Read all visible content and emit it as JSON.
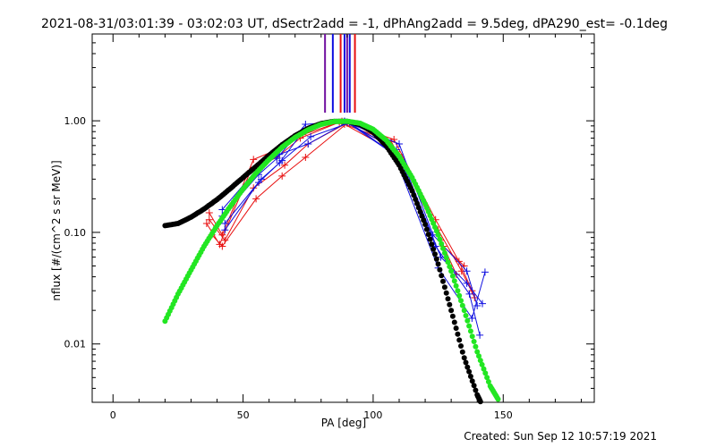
{
  "chart_data": {
    "type": "scatter",
    "title": "2021-08-31/03:01:39 - 03:02:03 UT, dSectr2add = -1, dPhAng2add = 9.5deg, dPA290_est= -0.1deg",
    "xlabel": "PA [deg]",
    "ylabel": "nflux [#/(cm^2 s sr MeV)]",
    "footer": "Created: Sun Sep 12 10:57:19 2021",
    "xlim": [
      -8,
      185
    ],
    "ylim": [
      0.003,
      6.0
    ],
    "yscale": "log",
    "xticks": [
      0,
      50,
      100,
      150
    ],
    "xtick_labels": [
      "0",
      "50",
      "100",
      "150"
    ],
    "yticks": [
      0.01,
      0.1,
      1.0
    ],
    "ytick_labels": [
      "0.01",
      "0.10",
      "1.00"
    ],
    "grid": false,
    "colors": {
      "red": "#e81010",
      "blue": "#1010e0",
      "purple": "#7010a0",
      "green": "#22e622",
      "black": "#000000"
    },
    "vertical_markers": [
      {
        "x": 81.5,
        "color": "#7010a0"
      },
      {
        "x": 84.5,
        "color": "#1010e0"
      },
      {
        "x": 87.5,
        "color": "#e81010"
      },
      {
        "x": 89.0,
        "color": "#1010e0"
      },
      {
        "x": 90.0,
        "color": "#7010a0"
      },
      {
        "x": 91.0,
        "color": "#1010e0"
      },
      {
        "x": 93.0,
        "color": "#e81010"
      }
    ],
    "series": [
      {
        "color": "#000000",
        "style": "dots",
        "x": [
          20,
          25,
          30,
          35,
          40,
          45,
          50,
          55,
          60,
          65,
          70,
          75,
          80,
          85,
          90,
          95,
          100,
          105,
          110,
          115,
          120,
          125,
          130,
          135,
          140,
          142
        ],
        "y": [
          0.115,
          0.12,
          0.137,
          0.162,
          0.197,
          0.246,
          0.31,
          0.39,
          0.49,
          0.61,
          0.735,
          0.855,
          0.945,
          0.99,
          0.99,
          0.925,
          0.79,
          0.6,
          0.4,
          0.235,
          0.118,
          0.052,
          0.02,
          0.0075,
          0.0035,
          0.0028
        ]
      },
      {
        "color": "#22e622",
        "style": "dots",
        "x": [
          20,
          25,
          30,
          35,
          40,
          45,
          50,
          55,
          60,
          65,
          70,
          75,
          80,
          85,
          90,
          95,
          100,
          105,
          110,
          115,
          120,
          125,
          130,
          135,
          140,
          145,
          148
        ],
        "y": [
          0.016,
          0.028,
          0.046,
          0.075,
          0.115,
          0.17,
          0.245,
          0.34,
          0.45,
          0.58,
          0.71,
          0.83,
          0.93,
          0.985,
          0.99,
          0.95,
          0.84,
          0.67,
          0.48,
          0.31,
          0.18,
          0.095,
          0.045,
          0.02,
          0.0085,
          0.0042,
          0.0032
        ]
      },
      {
        "color": "#e81010",
        "style": "lines",
        "x": [
          37,
          42,
          54,
          63,
          73,
          88,
          108,
          124,
          133,
          138
        ],
        "y": [
          0.15,
          0.095,
          0.45,
          0.55,
          0.75,
          0.99,
          0.68,
          0.13,
          0.055,
          0.03
        ]
      },
      {
        "color": "#e81010",
        "style": "lines",
        "x": [
          36,
          41,
          53,
          63,
          72,
          87,
          107,
          125,
          134,
          139
        ],
        "y": [
          0.12,
          0.078,
          0.36,
          0.47,
          0.7,
          0.97,
          0.65,
          0.105,
          0.045,
          0.026
        ]
      },
      {
        "color": "#e81010",
        "style": "lines",
        "x": [
          38,
          42,
          55,
          65,
          74,
          90,
          109,
          126,
          132
        ],
        "y": [
          0.095,
          0.075,
          0.2,
          0.32,
          0.47,
          0.95,
          0.55,
          0.085,
          0.042
        ]
      },
      {
        "color": "#e81010",
        "style": "lines",
        "x": [
          37,
          43,
          54,
          66,
          75,
          89,
          110,
          127,
          135
        ],
        "y": [
          0.13,
          0.085,
          0.25,
          0.4,
          0.62,
          0.93,
          0.5,
          0.075,
          0.05
        ]
      },
      {
        "color": "#1010e0",
        "style": "lines",
        "x": [
          42,
          56,
          63,
          74,
          89,
          110,
          123,
          136,
          140
        ],
        "y": [
          0.14,
          0.33,
          0.46,
          0.93,
          0.99,
          0.62,
          0.095,
          0.045,
          0.022
        ]
      },
      {
        "color": "#1010e0",
        "style": "lines",
        "x": [
          43,
          56,
          64,
          74,
          89,
          109,
          124,
          137,
          141
        ],
        "y": [
          0.105,
          0.28,
          0.42,
          0.86,
          0.99,
          0.55,
          0.075,
          0.028,
          0.012
        ]
      },
      {
        "color": "#1010e0",
        "style": "lines",
        "x": [
          42,
          55,
          64,
          75,
          90,
          108,
          125,
          138,
          143
        ],
        "y": [
          0.16,
          0.36,
          0.5,
          0.62,
          0.97,
          0.5,
          0.048,
          0.017,
          0.044
        ]
      },
      {
        "color": "#1010e0",
        "style": "lines",
        "x": [
          43,
          57,
          65,
          76,
          91,
          111,
          126,
          136,
          142
        ],
        "y": [
          0.12,
          0.3,
          0.44,
          0.72,
          0.96,
          0.45,
          0.06,
          0.035,
          0.023
        ]
      }
    ]
  }
}
